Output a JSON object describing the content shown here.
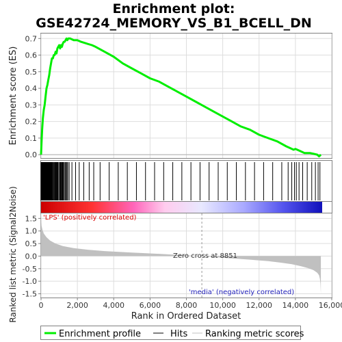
{
  "title_line1": "Enrichment plot:",
  "title_line2": "GSE42724_MEMORY_VS_B1_BCELL_DN",
  "es_axis_label": "Enrichment score (ES)",
  "metric_axis_label": "Ranked list metric (Signal2Noise)",
  "x_axis_label": "Rank in Ordered Dataset",
  "pos_label": "'LPS' (positively correlated)",
  "neg_label": "'media' (negatively correlated)",
  "zero_cross_label": "Zero cross at 8851",
  "legend": {
    "enrichment": "Enrichment profile",
    "hits": "Hits",
    "metric": "Ranking metric scores"
  },
  "colors": {
    "enrichment": "#00ee00",
    "hits": "#000000",
    "metric_fill": "#c0c0c0",
    "pos_text": "#dd0000",
    "neg_text": "#2222bb",
    "grid": "#dddddd"
  },
  "chart_data": {
    "type": "line",
    "dataset_size": 15400,
    "zero_cross": 8851,
    "x_ticks": [
      "0",
      "2,000",
      "4,000",
      "6,000",
      "8,000",
      "10,000",
      "12,000",
      "14,000",
      "16,000"
    ],
    "x_tick_values": [
      0,
      2000,
      4000,
      6000,
      8000,
      10000,
      12000,
      14000,
      16000
    ],
    "xlim": [
      0,
      16000
    ],
    "es_ticks": [
      "0.0",
      "0.1",
      "0.2",
      "0.3",
      "0.4",
      "0.5",
      "0.6",
      "0.7"
    ],
    "es_tick_values": [
      0.0,
      0.1,
      0.2,
      0.3,
      0.4,
      0.5,
      0.6,
      0.7
    ],
    "es_ylim": [
      -0.02,
      0.73
    ],
    "metric_ticks": [
      "1.5",
      "1.0",
      "0.5",
      "0.0",
      "-0.5",
      "-1.0",
      "-1.5"
    ],
    "metric_tick_values": [
      1.5,
      1.0,
      0.5,
      0.0,
      -0.5,
      -1.0,
      -1.5
    ],
    "metric_ylim": [
      -1.65,
      1.7
    ],
    "enrichment_profile": {
      "rank": [
        0,
        30,
        60,
        100,
        150,
        200,
        250,
        300,
        350,
        400,
        450,
        500,
        550,
        600,
        650,
        700,
        750,
        800,
        850,
        900,
        950,
        1000,
        1050,
        1100,
        1150,
        1200,
        1250,
        1300,
        1350,
        1400,
        1450,
        1500,
        1600,
        1800,
        2000,
        2200,
        2500,
        2800,
        3000,
        3500,
        4000,
        4500,
        5000,
        5500,
        6000,
        6500,
        7000,
        7500,
        8000,
        8500,
        9000,
        9500,
        10000,
        10500,
        11000,
        11500,
        12000,
        12500,
        13000,
        13500,
        13700,
        13900,
        14000,
        14100,
        14300,
        14500,
        14800,
        15000,
        15200,
        15300,
        15400
      ],
      "es": [
        0.0,
        0.08,
        0.15,
        0.22,
        0.27,
        0.3,
        0.35,
        0.4,
        0.42,
        0.45,
        0.48,
        0.52,
        0.55,
        0.58,
        0.58,
        0.6,
        0.6,
        0.62,
        0.61,
        0.64,
        0.65,
        0.66,
        0.64,
        0.66,
        0.65,
        0.67,
        0.68,
        0.68,
        0.69,
        0.7,
        0.69,
        0.7,
        0.7,
        0.69,
        0.69,
        0.68,
        0.67,
        0.66,
        0.65,
        0.62,
        0.59,
        0.55,
        0.52,
        0.49,
        0.46,
        0.44,
        0.41,
        0.38,
        0.35,
        0.32,
        0.29,
        0.26,
        0.23,
        0.2,
        0.17,
        0.15,
        0.12,
        0.1,
        0.08,
        0.05,
        0.04,
        0.03,
        0.035,
        0.03,
        0.02,
        0.01,
        0.01,
        0.005,
        0.0,
        -0.01,
        0.0
      ]
    },
    "ranking_metric": {
      "rank": [
        0,
        30,
        80,
        150,
        300,
        500,
        800,
        1200,
        1800,
        2500,
        3500,
        5000,
        6500,
        7500,
        8300,
        8851,
        9500,
        10500,
        11500,
        12500,
        13200,
        13800,
        14300,
        14700,
        15000,
        15200,
        15300,
        15350,
        15380,
        15400
      ],
      "metric": [
        1.5,
        1.2,
        1.05,
        0.9,
        0.75,
        0.62,
        0.5,
        0.4,
        0.32,
        0.26,
        0.2,
        0.14,
        0.09,
        0.05,
        0.02,
        0.0,
        -0.04,
        -0.09,
        -0.14,
        -0.2,
        -0.26,
        -0.32,
        -0.4,
        -0.48,
        -0.56,
        -0.66,
        -0.76,
        -0.9,
        -1.1,
        -1.5
      ]
    }
  }
}
